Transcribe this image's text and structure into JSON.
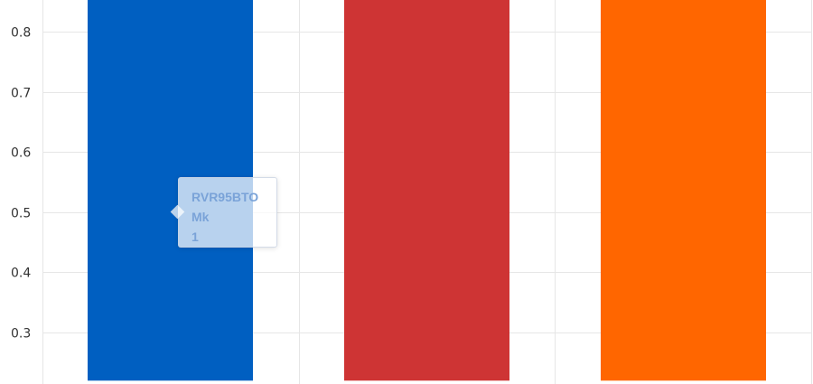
{
  "colors": {
    "grid": "#e6e6e6",
    "series": [
      "#005fc1",
      "#ce3434",
      "#ff6600"
    ]
  },
  "chart_data": {
    "type": "bar",
    "title": "",
    "xlabel": "",
    "ylabel": "",
    "categories": [
      "",
      "",
      ""
    ],
    "values": [
      1,
      1,
      1
    ],
    "ylim": [
      0.22,
      0.855
    ],
    "y_ticks": [
      0.3,
      0.4,
      0.5,
      0.6,
      0.7,
      0.8
    ],
    "y_tick_labels": [
      "0.3",
      "0.4",
      "0.5",
      "0.6",
      "0.7",
      "0.8"
    ],
    "grid": true
  },
  "tooltip": {
    "lines": [
      "RVR95BTO",
      "Mk",
      "1"
    ]
  }
}
